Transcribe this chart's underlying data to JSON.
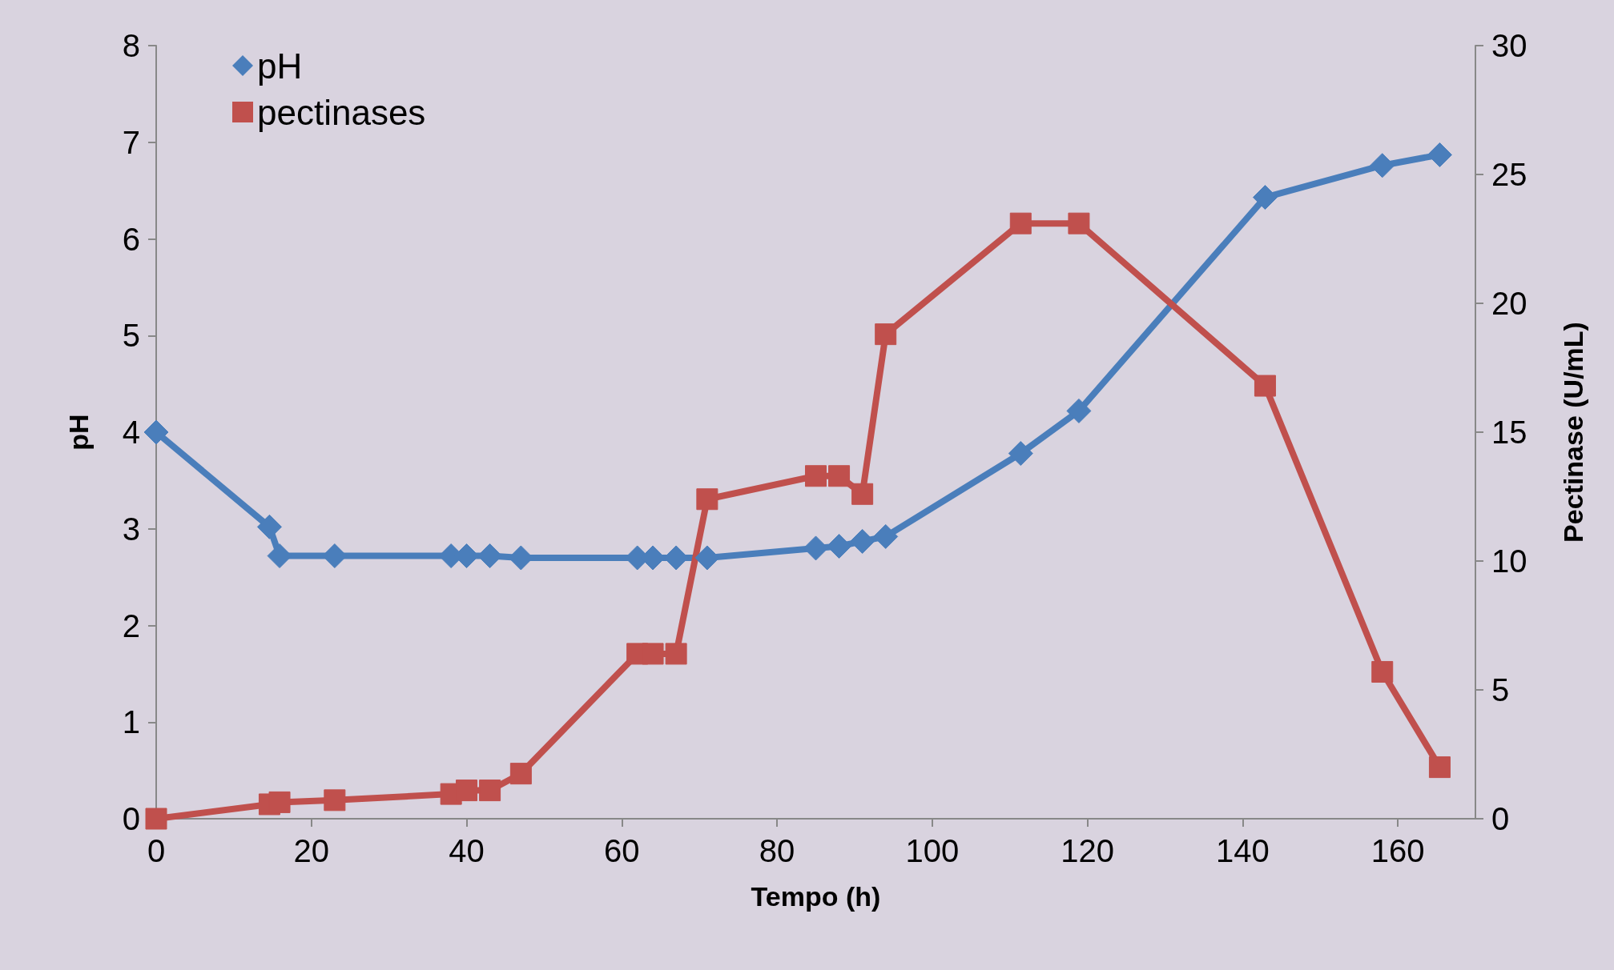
{
  "chart_data": {
    "type": "line",
    "xlabel": "Tempo (h)",
    "ylabel": "pH",
    "y2label": "Pectinase (U/mL)",
    "xlim": [
      0,
      170
    ],
    "xticks": [
      0,
      20,
      40,
      60,
      80,
      100,
      120,
      140,
      160
    ],
    "ylim": [
      0,
      8
    ],
    "yticks": [
      0,
      1,
      2,
      3,
      4,
      5,
      6,
      7,
      8
    ],
    "y2lim": [
      0,
      30
    ],
    "y2ticks": [
      0,
      5,
      10,
      15,
      20,
      25,
      30
    ],
    "grid": false,
    "legend": "top left",
    "series": [
      {
        "name": "pH",
        "color": "#4a7ebb",
        "marker": "diamond",
        "x": [
          0,
          14.6,
          15.9,
          23,
          38,
          40,
          43,
          47,
          62,
          64,
          67,
          71,
          85,
          88,
          91,
          94,
          111.4,
          118.9,
          142.9,
          158,
          165.4
        ],
        "values": [
          4.0,
          3.02,
          2.72,
          2.72,
          2.72,
          2.72,
          2.72,
          2.7,
          2.7,
          2.7,
          2.7,
          2.7,
          2.8,
          2.82,
          2.87,
          2.92,
          3.78,
          4.22,
          6.43,
          6.76,
          6.87
        ]
      },
      {
        "name": "pectinases",
        "color": "#c0504d",
        "marker": "square",
        "axis": "y2",
        "x": [
          0,
          14.6,
          15.9,
          23,
          38,
          40,
          43,
          47,
          62,
          64,
          67,
          71,
          85,
          88,
          91,
          94,
          111.4,
          118.9,
          142.9,
          158,
          165.4
        ],
        "values": [
          0,
          0.56,
          0.64,
          0.72,
          0.96,
          1.1,
          1.1,
          1.75,
          6.4,
          6.4,
          6.4,
          12.4,
          13.3,
          13.3,
          12.6,
          18.8,
          23.1,
          23.1,
          16.8,
          5.7,
          2.0
        ]
      }
    ]
  }
}
